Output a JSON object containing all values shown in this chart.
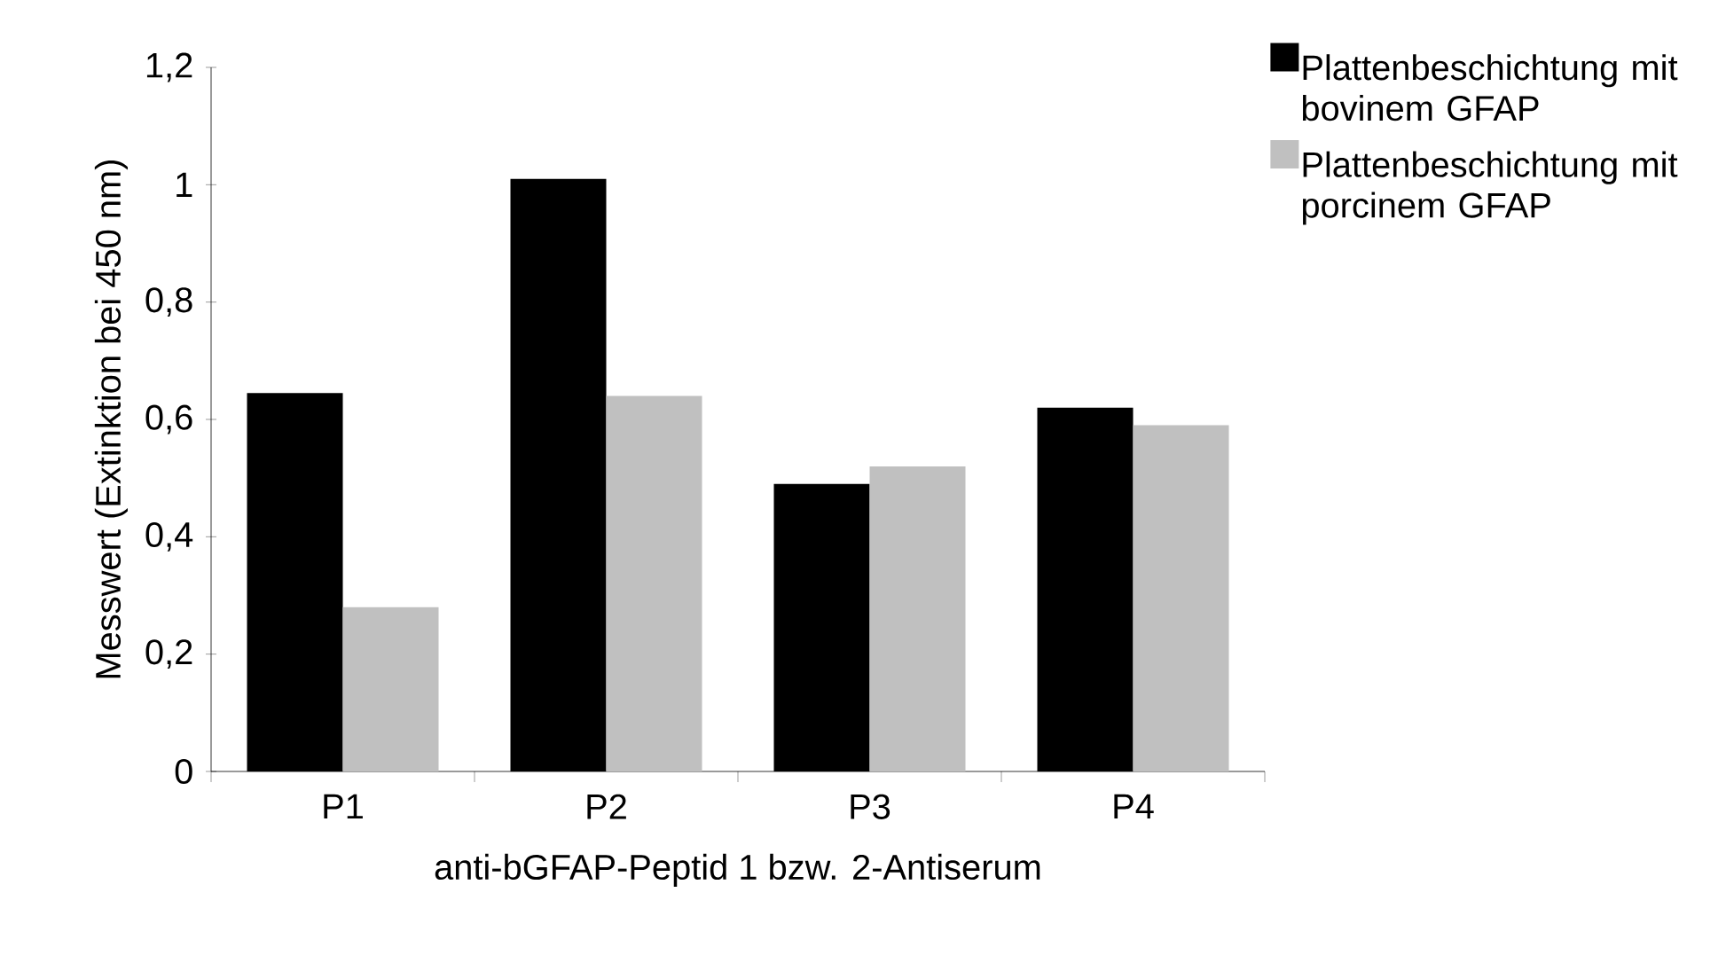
{
  "chart_data": {
    "type": "bar",
    "xlabel": "anti-bGFAP-Peptid 1 bzw. 2-Antiserum",
    "ylabel": "Messwert (Extinktion bei 450 nm)",
    "categories": [
      "P1",
      "P2",
      "P3",
      "P4"
    ],
    "series": [
      {
        "name": "Plattenbeschichtung mit bovinem GFAP",
        "color": "#000000",
        "values": [
          0.645,
          1.01,
          0.49,
          0.62
        ]
      },
      {
        "name": "Plattenbeschichtung mit porcinem GFAP",
        "color": "#c0c0c0",
        "values": [
          0.28,
          0.64,
          0.52,
          0.59
        ]
      }
    ],
    "ylim": [
      0,
      1.2
    ],
    "yticks": [
      0,
      {
        "value": 0.2,
        "label": "0,2"
      },
      {
        "value": 0.4,
        "label": "0,4"
      },
      {
        "value": 0.6,
        "label": "0,6"
      },
      {
        "value": 0.8,
        "label": "0,8"
      },
      1,
      {
        "value": 1.2,
        "label": "1,2"
      }
    ],
    "grid": false,
    "legend": "top right"
  }
}
